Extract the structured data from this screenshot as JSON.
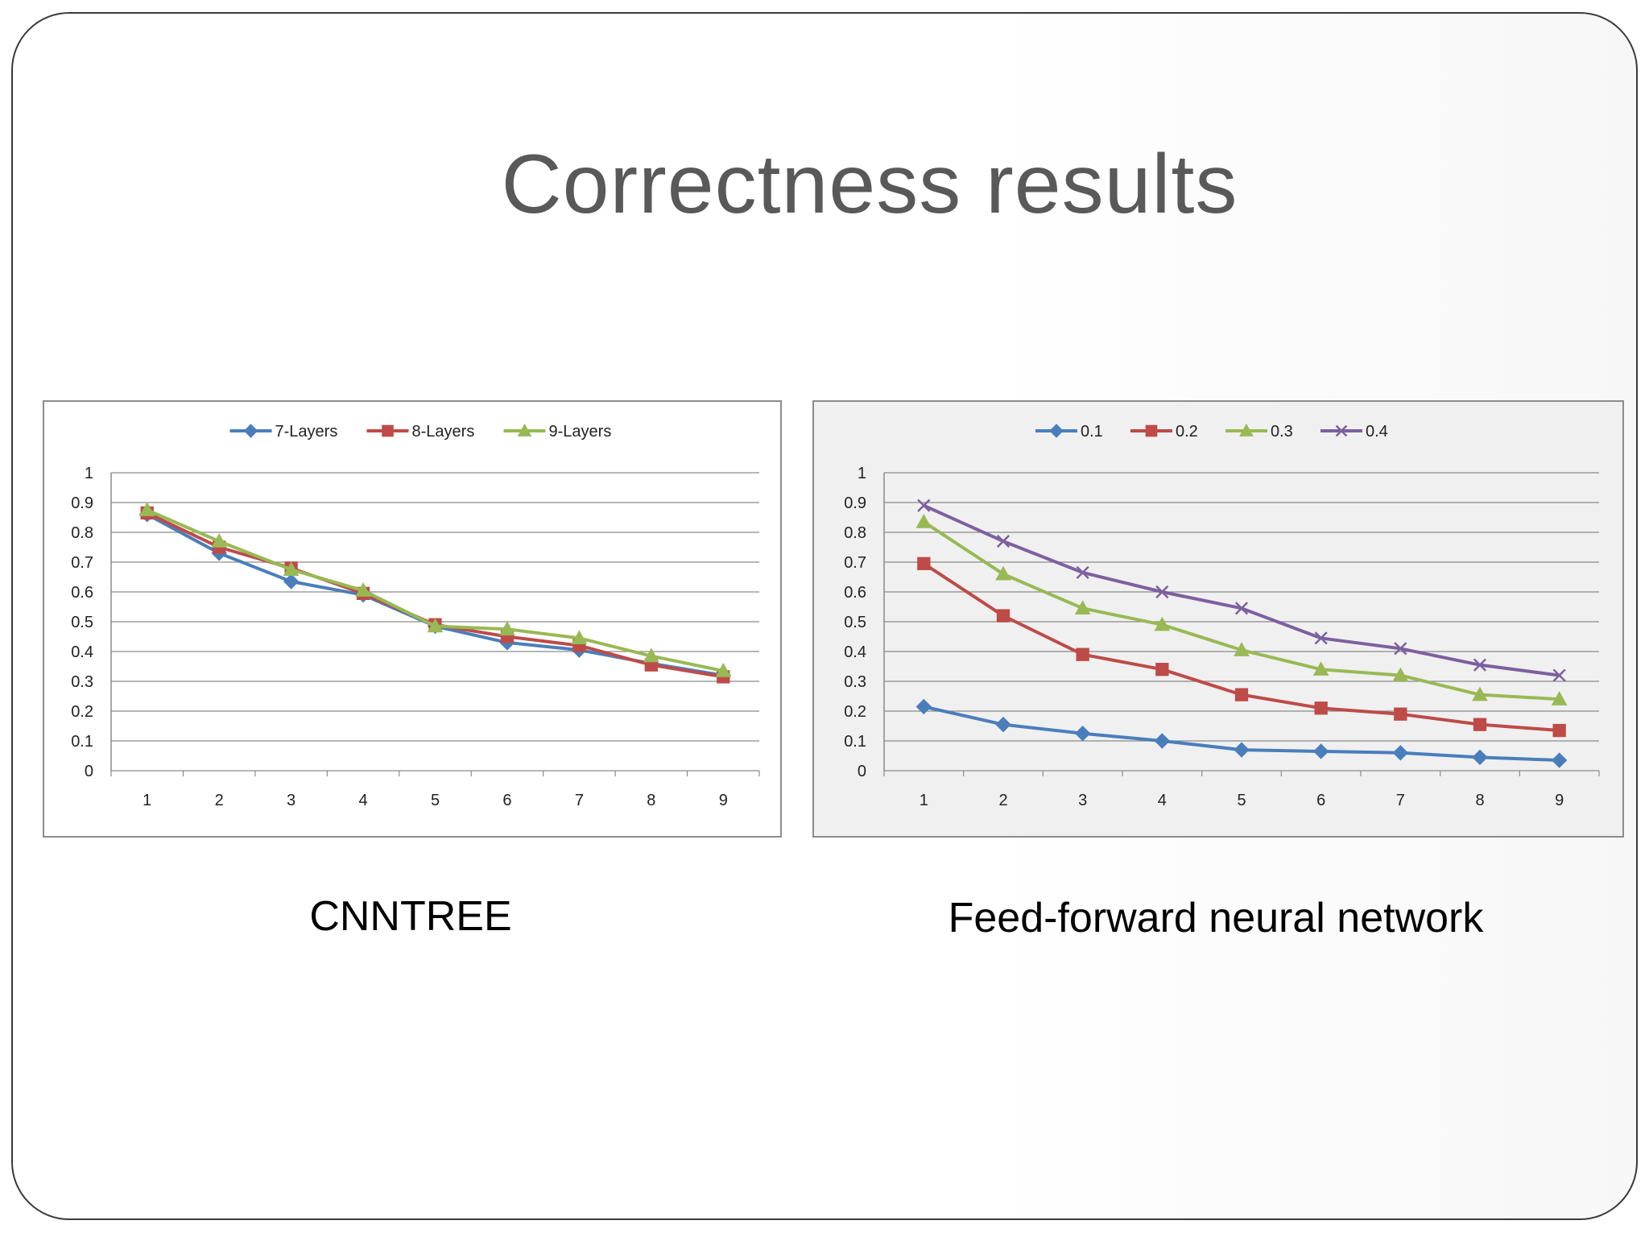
{
  "slide": {
    "title": "Correctness results",
    "captions": [
      "CNNTREE",
      "Feed-forward neural network"
    ]
  },
  "chart_data": [
    {
      "type": "line",
      "categories": [
        "1",
        "2",
        "3",
        "4",
        "5",
        "6",
        "7",
        "8",
        "9"
      ],
      "ylim": [
        0,
        1
      ],
      "yticks": [
        "0",
        "0.1",
        "0.2",
        "0.3",
        "0.4",
        "0.5",
        "0.6",
        "0.7",
        "0.8",
        "0.9",
        "1"
      ],
      "grid": true,
      "legend": "top",
      "background": "#ffffff",
      "series": [
        {
          "name": "7-Layers",
          "color": "#4a7ebb",
          "marker": "diamond",
          "values": [
            0.86,
            0.73,
            0.635,
            0.59,
            0.485,
            0.43,
            0.405,
            0.36,
            0.32
          ]
        },
        {
          "name": "8-Layers",
          "color": "#be4b48",
          "marker": "square",
          "values": [
            0.865,
            0.75,
            0.68,
            0.595,
            0.49,
            0.45,
            0.42,
            0.355,
            0.315
          ]
        },
        {
          "name": "9-Layers",
          "color": "#98b954",
          "marker": "triangle",
          "values": [
            0.875,
            0.77,
            0.675,
            0.605,
            0.485,
            0.475,
            0.445,
            0.385,
            0.335
          ]
        }
      ]
    },
    {
      "type": "line",
      "categories": [
        "1",
        "2",
        "3",
        "4",
        "5",
        "6",
        "7",
        "8",
        "9"
      ],
      "ylim": [
        0,
        1
      ],
      "yticks": [
        "0",
        "0.1",
        "0.2",
        "0.3",
        "0.4",
        "0.5",
        "0.6",
        "0.7",
        "0.8",
        "0.9",
        "1"
      ],
      "grid": true,
      "legend": "top",
      "background": "#f0f0f0",
      "series": [
        {
          "name": "0.1",
          "color": "#4a7ebb",
          "marker": "diamond",
          "values": [
            0.215,
            0.155,
            0.125,
            0.1,
            0.07,
            0.065,
            0.06,
            0.045,
            0.035
          ]
        },
        {
          "name": "0.2",
          "color": "#be4b48",
          "marker": "square",
          "values": [
            0.695,
            0.52,
            0.39,
            0.34,
            0.255,
            0.21,
            0.19,
            0.155,
            0.135
          ]
        },
        {
          "name": "0.3",
          "color": "#98b954",
          "marker": "triangle",
          "values": [
            0.835,
            0.66,
            0.545,
            0.49,
            0.405,
            0.34,
            0.32,
            0.255,
            0.24
          ]
        },
        {
          "name": "0.4",
          "color": "#7d60a0",
          "marker": "x",
          "values": [
            0.89,
            0.77,
            0.665,
            0.6,
            0.545,
            0.445,
            0.41,
            0.355,
            0.32
          ]
        }
      ]
    }
  ]
}
